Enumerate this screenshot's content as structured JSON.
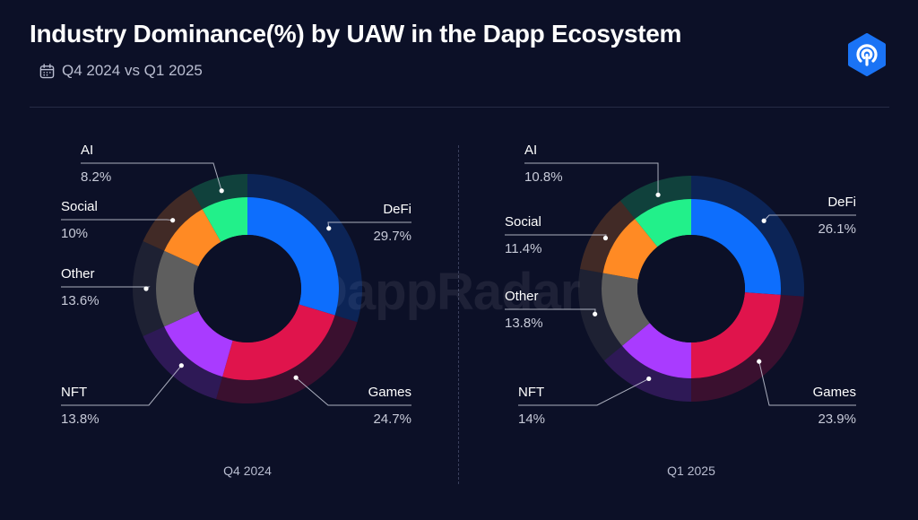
{
  "header": {
    "title": "Industry Dominance(%) by UAW in the Dapp Ecosystem",
    "subtitle": "Q4 2024 vs Q1 2025",
    "watermark": "DappRadar"
  },
  "colors": {
    "DeFi": "#0d6efd",
    "Games": "#e0144c",
    "NFT": "#a93bff",
    "Other": "#5e5e5e",
    "Social": "#ff8a24",
    "AI": "#22f08a",
    "background": "#0c1027"
  },
  "chart_data": [
    {
      "type": "pie",
      "variant": "donut",
      "title": "Q4 2024",
      "unit": "%",
      "categories": [
        "DeFi",
        "Games",
        "NFT",
        "Other",
        "Social",
        "AI"
      ],
      "values": [
        29.7,
        24.7,
        13.8,
        13.6,
        10,
        8.2
      ],
      "labels": [
        "29.7%",
        "24.7%",
        "13.8%",
        "13.6%",
        "10%",
        "8.2%"
      ]
    },
    {
      "type": "pie",
      "variant": "donut",
      "title": "Q1 2025",
      "unit": "%",
      "categories": [
        "DeFi",
        "Games",
        "NFT",
        "Other",
        "Social",
        "AI"
      ],
      "values": [
        26.1,
        23.9,
        14,
        13.8,
        11.4,
        10.8
      ],
      "labels": [
        "26.1%",
        "23.9%",
        "14%",
        "13.8%",
        "11.4%",
        "10.8%"
      ]
    }
  ]
}
